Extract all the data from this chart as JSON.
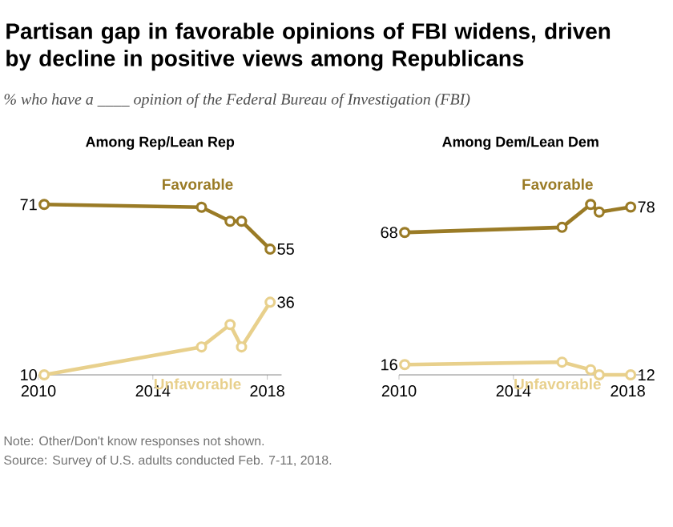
{
  "chart_data": [
    {
      "type": "other",
      "title": "Partisan gap in favorable opinions of FBI widens, driven by decline in positive views among Republicans",
      "subtitle": "% who have a ____ opinion of the Federal Bureau of Investigation (FBI)",
      "annotations": [
        "Note: Other/Don't know responses not shown.",
        "Source: Survey of U.S. adults conducted Feb. 7-11, 2018."
      ]
    },
    {
      "type": "line",
      "title": "Among Rep/Lean Rep",
      "xlim": [
        2010,
        2018.5
      ],
      "xticks": [
        2010,
        2014,
        2018
      ],
      "tick_labels": "x",
      "marker": "circle",
      "series": [
        {
          "name": "Favorable",
          "color": "#9a7b26",
          "x": [
            2010.2,
            2015.7,
            2016.7,
            2017.1,
            2018.1
          ],
          "values": [
            71,
            70,
            65,
            65,
            55
          ],
          "value_labels": [
            "71",
            null,
            null,
            null,
            "55"
          ]
        },
        {
          "name": "Unfavorable",
          "color": "#e8d08c",
          "x": [
            2010.2,
            2015.7,
            2016.7,
            2017.1,
            2018.1
          ],
          "values": [
            10,
            20,
            28,
            20,
            36
          ],
          "value_labels": [
            "10",
            null,
            null,
            null,
            "36"
          ]
        }
      ]
    },
    {
      "type": "line",
      "title": "Among Dem/Lean Dem",
      "xlim": [
        2010,
        2018.5
      ],
      "xticks": [
        2010,
        2014,
        2018
      ],
      "tick_labels": "x",
      "marker": "circle",
      "series": [
        {
          "name": "Favorable",
          "color": "#9a7b26",
          "x": [
            2010.2,
            2015.7,
            2016.7,
            2017.0,
            2018.1
          ],
          "values": [
            68,
            70,
            79,
            76,
            78
          ],
          "value_labels": [
            "68",
            null,
            null,
            null,
            "78"
          ]
        },
        {
          "name": "Unfavorable",
          "color": "#e8d08c",
          "x": [
            2010.2,
            2015.7,
            2016.7,
            2017.0,
            2018.1
          ],
          "values": [
            16,
            17,
            14,
            12,
            12
          ],
          "value_labels": [
            "16",
            null,
            null,
            null,
            "12"
          ]
        }
      ]
    }
  ]
}
